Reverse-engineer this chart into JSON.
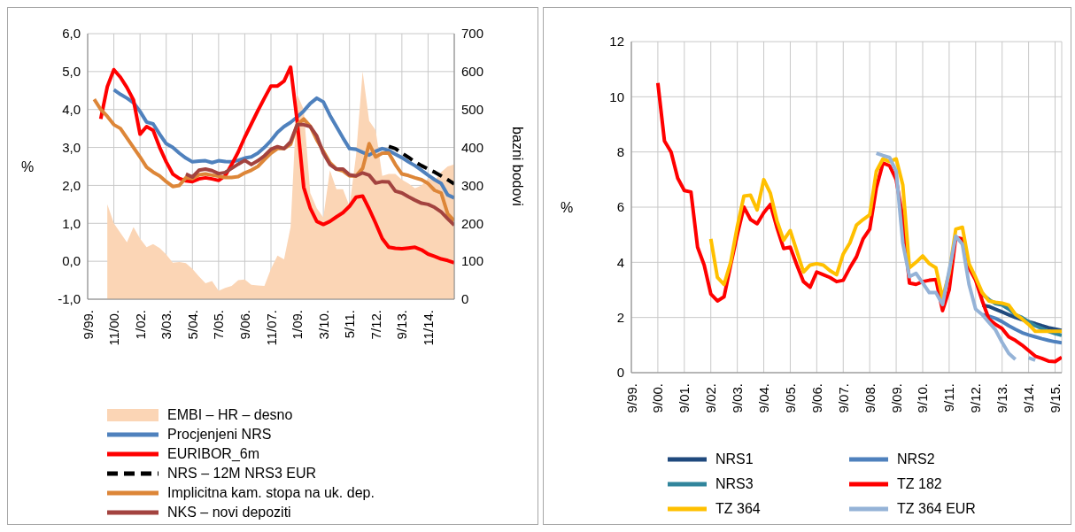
{
  "chart_data": [
    {
      "type": "line",
      "ylabel": "%",
      "y2label": "bazni bodovi",
      "categories": [
        "9/99.",
        null,
        null,
        null,
        "11/00.",
        null,
        null,
        null,
        "1/02.",
        null,
        null,
        null,
        "3/03.",
        null,
        null,
        null,
        "5/04.",
        null,
        null,
        null,
        "7/05.",
        null,
        null,
        null,
        "9/06.",
        null,
        null,
        null,
        "11/07.",
        null,
        null,
        null,
        "1/09.",
        null,
        null,
        null,
        "3/10.",
        null,
        null,
        null,
        "5/11.",
        null,
        null,
        null,
        "7/12.",
        null,
        null,
        null,
        "9/13.",
        null,
        null,
        null,
        "11/14.",
        null,
        null,
        null,
        null
      ],
      "series": [
        {
          "name": "EMBI – HR – desno",
          "type": "area",
          "axis": "y2",
          "color": "#fbd5b5",
          "values": [
            null,
            null,
            null,
            250,
            200,
            175,
            150,
            190,
            160,
            137,
            145,
            135,
            118,
            96,
            98,
            95,
            80,
            60,
            42,
            48,
            22,
            30,
            35,
            50,
            52,
            38,
            36,
            35,
            80,
            115,
            105,
            190,
            540,
            500,
            280,
            240,
            215,
            340,
            290,
            290,
            245,
            380,
            600,
            470,
            445,
            325,
            330,
            330,
            315,
            305,
            292,
            300,
            318,
            312,
            335,
            350,
            355
          ]
        },
        {
          "name": "Procjenjeni NRS",
          "color": "#4f81bd",
          "values": [
            null,
            null,
            null,
            null,
            4.52,
            4.4,
            4.3,
            4.18,
            3.95,
            3.67,
            3.62,
            3.35,
            3.1,
            3.0,
            2.85,
            2.72,
            2.62,
            2.64,
            2.65,
            2.6,
            2.65,
            2.63,
            2.62,
            2.66,
            2.72,
            2.75,
            2.85,
            3.0,
            3.18,
            3.4,
            3.55,
            3.66,
            3.8,
            3.96,
            4.16,
            4.3,
            4.2,
            3.85,
            3.55,
            3.25,
            2.97,
            2.95,
            2.87,
            2.8,
            2.9,
            2.97,
            2.92,
            2.82,
            2.73,
            2.62,
            2.52,
            2.4,
            2.27,
            2.15,
            2.05,
            1.75,
            1.67
          ]
        },
        {
          "name": "EURIBOR_6m",
          "color": "#ff0000",
          "values": [
            null,
            null,
            3.75,
            4.6,
            5.05,
            4.85,
            4.58,
            4.25,
            3.35,
            3.55,
            3.45,
            3.0,
            2.62,
            2.3,
            2.18,
            2.12,
            2.1,
            2.17,
            2.2,
            2.17,
            2.13,
            2.25,
            2.55,
            2.88,
            3.27,
            3.62,
            3.97,
            4.3,
            4.62,
            4.62,
            4.75,
            5.12,
            3.7,
            1.95,
            1.4,
            1.05,
            0.97,
            1.05,
            1.17,
            1.28,
            1.45,
            1.69,
            1.72,
            1.38,
            1.0,
            0.6,
            0.37,
            0.34,
            0.33,
            0.35,
            0.37,
            0.3,
            0.19,
            0.13,
            0.06,
            0.02,
            -0.04
          ]
        },
        {
          "name": "NRS – 12M NRS3 EUR",
          "color": "#000000",
          "line_style": "dashed",
          "values": [
            null,
            null,
            null,
            null,
            null,
            null,
            null,
            null,
            null,
            null,
            null,
            null,
            null,
            null,
            null,
            null,
            null,
            null,
            null,
            null,
            null,
            null,
            null,
            null,
            null,
            null,
            null,
            null,
            null,
            null,
            null,
            null,
            null,
            null,
            null,
            null,
            null,
            null,
            null,
            null,
            null,
            null,
            null,
            null,
            null,
            null,
            3.03,
            2.97,
            2.85,
            2.74,
            2.62,
            2.52,
            2.43,
            2.35,
            2.25,
            2.15,
            2.04
          ]
        },
        {
          "name": "Implicitna kam. stopa na uk. dep.",
          "color": "#dd8638",
          "values": [
            null,
            4.27,
            4.0,
            3.82,
            3.6,
            3.5,
            3.25,
            3.0,
            2.75,
            2.48,
            2.35,
            2.25,
            2.1,
            1.97,
            2.0,
            2.2,
            2.18,
            2.28,
            2.3,
            2.27,
            2.24,
            2.21,
            2.21,
            2.23,
            2.33,
            2.4,
            2.5,
            2.68,
            2.85,
            2.97,
            2.97,
            3.08,
            3.6,
            3.75,
            3.56,
            3.2,
            2.9,
            2.6,
            2.43,
            2.38,
            2.25,
            2.25,
            2.45,
            3.1,
            2.75,
            2.85,
            2.85,
            2.55,
            2.3,
            2.26,
            2.2,
            2.15,
            2.05,
            1.87,
            1.8,
            1.25,
            1.07
          ]
        },
        {
          "name": "NKS – novi depoziti",
          "color": "#a3433f",
          "values": [
            null,
            null,
            null,
            null,
            null,
            null,
            null,
            null,
            null,
            null,
            null,
            null,
            null,
            null,
            null,
            2.3,
            2.22,
            2.4,
            2.43,
            2.39,
            2.31,
            2.34,
            2.45,
            2.56,
            2.66,
            2.55,
            2.65,
            2.78,
            2.95,
            3.02,
            2.97,
            3.15,
            3.6,
            3.6,
            3.55,
            3.3,
            2.85,
            2.55,
            2.43,
            2.43,
            2.28,
            2.25,
            2.33,
            2.27,
            2.06,
            2.1,
            2.09,
            1.85,
            1.8,
            1.7,
            1.61,
            1.53,
            1.5,
            1.42,
            1.3,
            1.12,
            0.95
          ]
        }
      ],
      "ylim": [
        -1,
        6
      ],
      "yticks": [
        {
          "value": -1,
          "label": "-1,0"
        },
        {
          "value": 0,
          "label": "0,0"
        },
        {
          "value": 1,
          "label": "1,0"
        },
        {
          "value": 2,
          "label": "2,0"
        },
        {
          "value": 3,
          "label": "3,0"
        },
        {
          "value": 4,
          "label": "4,0"
        },
        {
          "value": 5,
          "label": "5,0"
        },
        {
          "value": 6,
          "label": "6,0"
        }
      ],
      "y2lim": [
        0,
        700
      ],
      "y2ticks": [
        0,
        100,
        200,
        300,
        400,
        500,
        600,
        700
      ],
      "grid": true,
      "legend": "bottom"
    },
    {
      "type": "line",
      "ylabel": "%",
      "categories": [
        "9/99.",
        null,
        null,
        null,
        "9/00.",
        null,
        null,
        null,
        "9/01.",
        null,
        null,
        null,
        "9/02.",
        null,
        null,
        null,
        "9/03.",
        null,
        null,
        null,
        "9/04.",
        null,
        null,
        null,
        "9/05.",
        null,
        null,
        null,
        "9/06.",
        null,
        null,
        null,
        "9/07.",
        null,
        null,
        null,
        "9/08.",
        null,
        null,
        null,
        "9/09.",
        null,
        null,
        null,
        "9/10.",
        null,
        null,
        null,
        "9/11.",
        null,
        null,
        null,
        "9/12.",
        null,
        null,
        null,
        "9/13.",
        null,
        null,
        null,
        "9/14.",
        null,
        null,
        null,
        "9/15.",
        null
      ],
      "series": [
        {
          "name": "NRS1",
          "color": "#1f497d",
          "values": [
            null,
            null,
            null,
            null,
            null,
            null,
            null,
            null,
            null,
            null,
            null,
            null,
            null,
            null,
            null,
            null,
            null,
            null,
            null,
            null,
            null,
            null,
            null,
            null,
            null,
            null,
            null,
            null,
            null,
            null,
            null,
            null,
            null,
            null,
            null,
            null,
            null,
            null,
            null,
            null,
            null,
            null,
            null,
            null,
            null,
            null,
            null,
            null,
            null,
            null,
            null,
            null,
            null,
            2.45,
            2.4,
            2.3,
            2.2,
            2.1,
            2.0,
            1.92,
            1.85,
            1.78,
            1.7,
            1.63,
            1.58,
            1.53
          ]
        },
        {
          "name": "NRS2",
          "color": "#4f81bd",
          "values": [
            null,
            null,
            null,
            null,
            null,
            null,
            null,
            null,
            null,
            null,
            null,
            null,
            null,
            null,
            null,
            null,
            null,
            null,
            null,
            null,
            null,
            null,
            null,
            null,
            null,
            null,
            null,
            null,
            null,
            null,
            null,
            null,
            null,
            null,
            null,
            null,
            null,
            null,
            null,
            null,
            null,
            null,
            null,
            null,
            null,
            null,
            null,
            null,
            null,
            null,
            null,
            null,
            null,
            2.1,
            2.05,
            1.97,
            1.85,
            1.7,
            1.57,
            1.45,
            1.37,
            1.3,
            1.23,
            1.17,
            1.12,
            1.08
          ]
        },
        {
          "name": "NRS3",
          "color": "#31859c",
          "values": [
            null,
            null,
            null,
            null,
            null,
            null,
            null,
            null,
            null,
            null,
            null,
            null,
            null,
            null,
            null,
            null,
            null,
            null,
            null,
            null,
            null,
            null,
            null,
            null,
            null,
            null,
            null,
            null,
            null,
            null,
            null,
            null,
            null,
            null,
            null,
            null,
            null,
            null,
            null,
            null,
            null,
            null,
            null,
            null,
            null,
            null,
            null,
            null,
            null,
            null,
            null,
            null,
            null,
            2.85,
            2.65,
            2.5,
            2.45,
            2.3,
            2.1,
            2.0,
            1.85,
            1.7,
            1.6,
            1.5,
            1.42,
            1.35
          ]
        },
        {
          "name": "TZ 182",
          "color": "#ff0000",
          "values": [
            null,
            null,
            null,
            null,
            10.5,
            8.4,
            8.0,
            7.05,
            6.6,
            6.55,
            4.55,
            3.9,
            2.85,
            2.6,
            2.75,
            3.9,
            5.0,
            6.0,
            5.55,
            5.4,
            5.8,
            6.1,
            5.25,
            4.5,
            4.55,
            3.9,
            3.3,
            3.1,
            3.65,
            3.55,
            3.45,
            3.3,
            3.35,
            3.8,
            4.2,
            4.85,
            5.2,
            6.7,
            7.6,
            7.5,
            7.0,
            5.6,
            3.25,
            3.2,
            3.3,
            3.35,
            3.38,
            2.25,
            3.0,
            4.9,
            4.85,
            3.8,
            3.35,
            2.6,
            1.95,
            1.75,
            1.6,
            1.3,
            1.17,
            1.0,
            0.8,
            0.6,
            0.52,
            0.42,
            0.4,
            0.56
          ]
        },
        {
          "name": "TZ 364",
          "color": "#ffc000",
          "values": [
            null,
            null,
            null,
            null,
            null,
            null,
            null,
            null,
            null,
            null,
            null,
            null,
            4.85,
            3.45,
            3.2,
            4.0,
            5.3,
            6.4,
            6.43,
            5.9,
            7.0,
            6.5,
            5.5,
            4.8,
            5.15,
            4.4,
            3.65,
            3.9,
            3.95,
            3.9,
            3.7,
            3.55,
            4.3,
            4.7,
            5.35,
            5.55,
            5.72,
            7.3,
            7.75,
            7.65,
            7.75,
            6.8,
            3.8,
            4.0,
            4.23,
            3.95,
            3.8,
            2.7,
            3.6,
            5.2,
            5.27,
            3.95,
            3.45,
            2.9,
            2.6,
            2.55,
            2.52,
            2.45,
            2.12,
            1.95,
            1.75,
            1.5,
            1.5,
            1.5,
            1.5,
            1.5
          ]
        },
        {
          "name": "TZ 364 EUR",
          "color": "#95b3d7",
          "values": [
            null,
            null,
            null,
            null,
            null,
            null,
            null,
            null,
            null,
            null,
            null,
            null,
            null,
            null,
            null,
            null,
            null,
            null,
            null,
            null,
            null,
            null,
            null,
            null,
            null,
            null,
            null,
            null,
            null,
            null,
            null,
            null,
            null,
            null,
            null,
            null,
            null,
            7.95,
            7.87,
            7.8,
            7.3,
            4.7,
            3.48,
            3.6,
            3.25,
            2.9,
            2.9,
            2.47,
            3.7,
            4.95,
            4.65,
            3.2,
            2.3,
            2.1,
            1.82,
            1.55,
            1.1,
            0.7,
            0.48,
            null,
            0.54,
            0.45,
            null,
            null,
            null,
            null
          ]
        }
      ],
      "ylim": [
        0,
        12
      ],
      "yticks": [
        0,
        2,
        4,
        6,
        8,
        10,
        12
      ],
      "grid": true,
      "legend": "bottom"
    }
  ]
}
